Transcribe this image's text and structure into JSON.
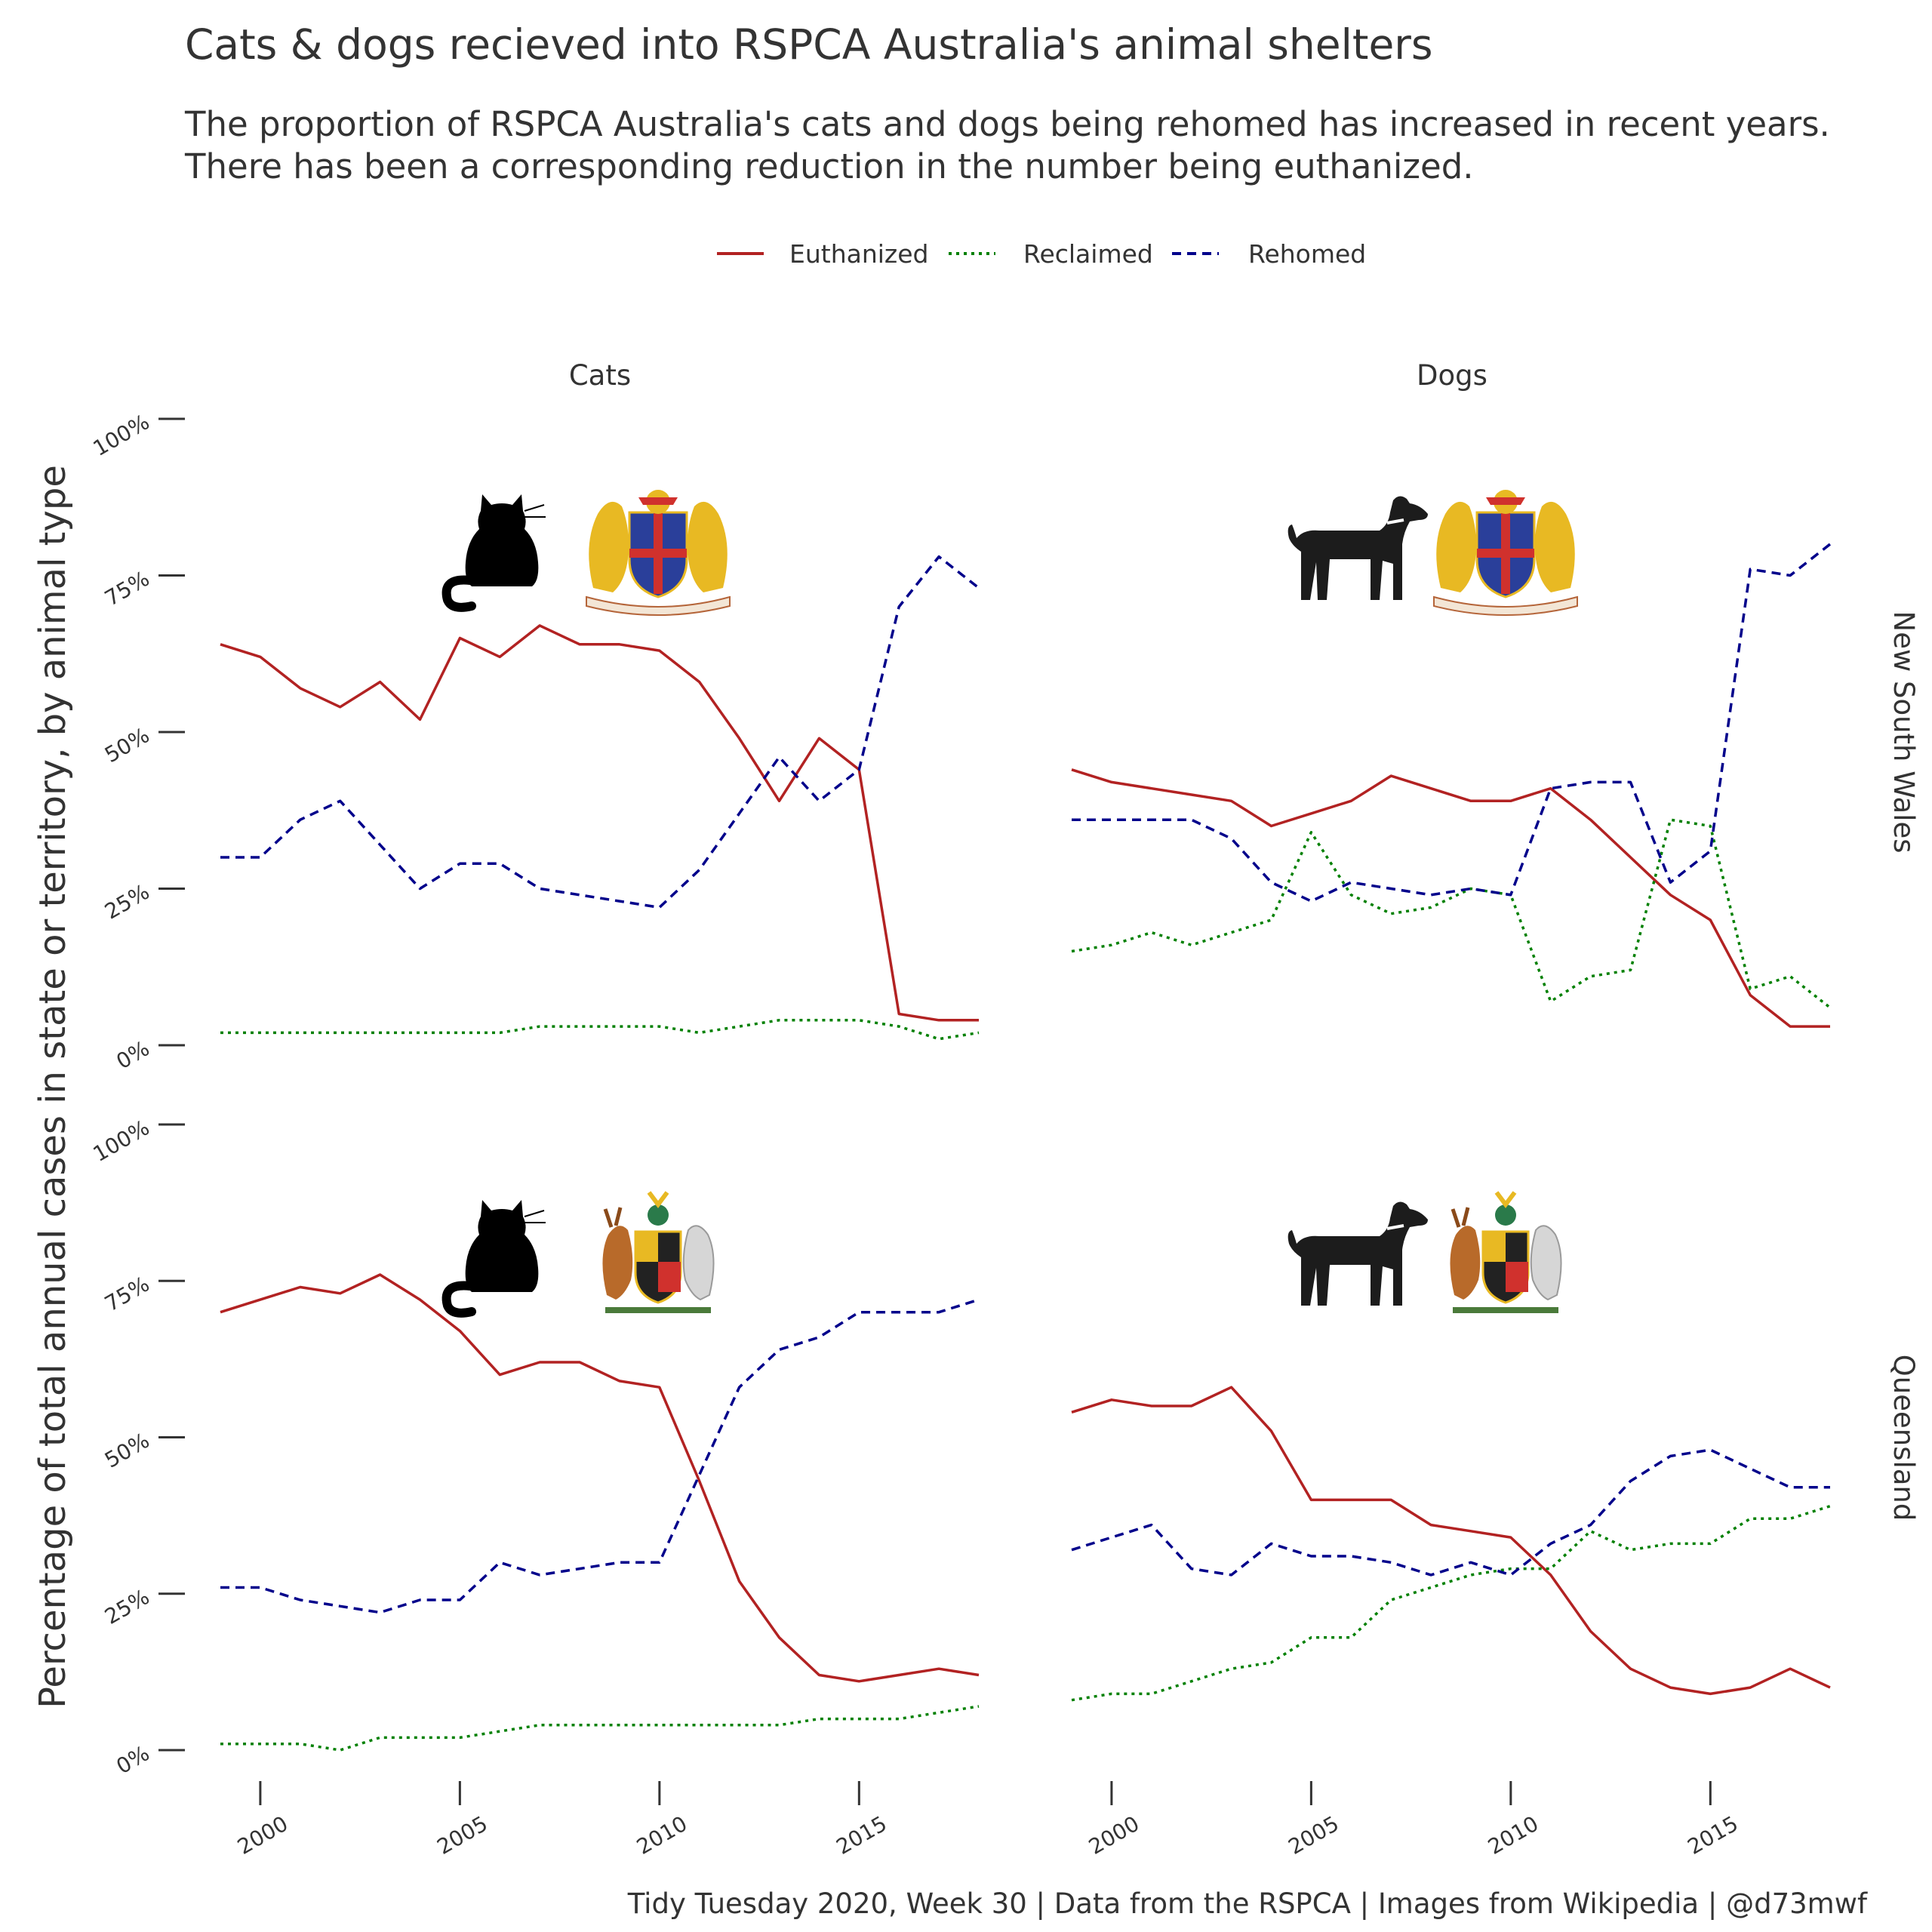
{
  "title": "Cats & dogs recieved into RSPCA Australia's animal shelters",
  "subtitle_lines": [
    "The proportion of RSPCA Australia's cats and dogs being rehomed has increased in recent years.",
    "There has been a corresponding reduction in the number being euthanized."
  ],
  "caption": "Tidy Tuesday 2020, Week 30   |   Data from the RSPCA   |   Images from Wikipedia   |   @d73mwf",
  "colors": {
    "Euthanized": "#b22222",
    "Reclaimed": "#008000",
    "Rehomed": "#00008b"
  },
  "icons": {
    "cat": "cat-silhouette-icon",
    "dog": "dog-silhouette-icon",
    "nsw": "nsw-coat-of-arms-icon",
    "qld": "qld-coat-of-arms-icon"
  },
  "chart_data": {
    "type": "line",
    "ylabel": "Percentage of total annual cases in state or territory, by animal type",
    "xlabel": "",
    "x_ticks": [
      "2000",
      "2005",
      "2010",
      "2015"
    ],
    "y_ticks": [
      "0%",
      "25%",
      "50%",
      "75%",
      "100%"
    ],
    "ylim": [
      0,
      100
    ],
    "xlim": [
      1999,
      2018
    ],
    "legend_position": "top",
    "grid": false,
    "columns": [
      "Cats",
      "Dogs"
    ],
    "rows": [
      "New South Wales",
      "Queensland"
    ],
    "x": [
      1999,
      2000,
      2001,
      2002,
      2003,
      2004,
      2005,
      2006,
      2007,
      2008,
      2009,
      2010,
      2011,
      2012,
      2013,
      2014,
      2015,
      2016,
      2017,
      2018
    ],
    "panels": [
      {
        "column": "Cats",
        "row": "New South Wales",
        "animal": "cat",
        "state": "nsw",
        "series": [
          {
            "name": "Euthanized",
            "values": [
              64,
              62,
              57,
              54,
              58,
              52,
              65,
              62,
              67,
              64,
              64,
              63,
              58,
              49,
              39,
              49,
              44,
              5,
              4,
              4
            ]
          },
          {
            "name": "Reclaimed",
            "values": [
              2,
              2,
              2,
              2,
              2,
              2,
              2,
              2,
              3,
              3,
              3,
              3,
              2,
              3,
              4,
              4,
              4,
              3,
              1,
              2
            ]
          },
          {
            "name": "Rehomed",
            "values": [
              30,
              30,
              36,
              39,
              32,
              25,
              29,
              29,
              25,
              24,
              23,
              22,
              28,
              37,
              46,
              39,
              44,
              70,
              78,
              73
            ]
          }
        ]
      },
      {
        "column": "Dogs",
        "row": "New South Wales",
        "animal": "dog",
        "state": "nsw",
        "series": [
          {
            "name": "Euthanized",
            "values": [
              44,
              42,
              41,
              40,
              39,
              35,
              37,
              39,
              43,
              41,
              39,
              39,
              41,
              36,
              30,
              24,
              20,
              8,
              3,
              3
            ]
          },
          {
            "name": "Reclaimed",
            "values": [
              15,
              16,
              18,
              16,
              18,
              20,
              34,
              24,
              21,
              22,
              25,
              24,
              7,
              11,
              12,
              36,
              35,
              9,
              11,
              6
            ]
          },
          {
            "name": "Rehomed",
            "values": [
              36,
              36,
              36,
              36,
              33,
              26,
              23,
              26,
              25,
              24,
              25,
              24,
              41,
              42,
              42,
              26,
              31,
              76,
              75,
              80
            ]
          }
        ]
      },
      {
        "column": "Cats",
        "row": "Queensland",
        "animal": "cat",
        "state": "qld",
        "series": [
          {
            "name": "Euthanized",
            "values": [
              70,
              72,
              74,
              73,
              76,
              72,
              67,
              60,
              62,
              62,
              59,
              58,
              43,
              27,
              18,
              12,
              11,
              12,
              13,
              12
            ]
          },
          {
            "name": "Reclaimed",
            "values": [
              1,
              1,
              1,
              0,
              2,
              2,
              2,
              3,
              4,
              4,
              4,
              4,
              4,
              4,
              4,
              5,
              5,
              5,
              6,
              7
            ]
          },
          {
            "name": "Rehomed",
            "values": [
              26,
              26,
              24,
              23,
              22,
              24,
              24,
              30,
              28,
              29,
              30,
              30,
              44,
              58,
              64,
              66,
              70,
              70,
              70,
              72
            ]
          }
        ]
      },
      {
        "column": "Dogs",
        "row": "Queensland",
        "animal": "dog",
        "state": "qld",
        "series": [
          {
            "name": "Euthanized",
            "values": [
              54,
              56,
              55,
              55,
              58,
              51,
              40,
              40,
              40,
              36,
              35,
              34,
              28,
              19,
              13,
              10,
              9,
              10,
              13,
              10
            ]
          },
          {
            "name": "Reclaimed",
            "values": [
              8,
              9,
              9,
              11,
              13,
              14,
              18,
              18,
              24,
              26,
              28,
              29,
              29,
              35,
              32,
              33,
              33,
              37,
              37,
              39
            ]
          },
          {
            "name": "Rehomed",
            "values": [
              32,
              34,
              36,
              29,
              28,
              33,
              31,
              31,
              30,
              28,
              30,
              28,
              33,
              36,
              43,
              47,
              48,
              45,
              42,
              42
            ]
          }
        ]
      }
    ]
  }
}
